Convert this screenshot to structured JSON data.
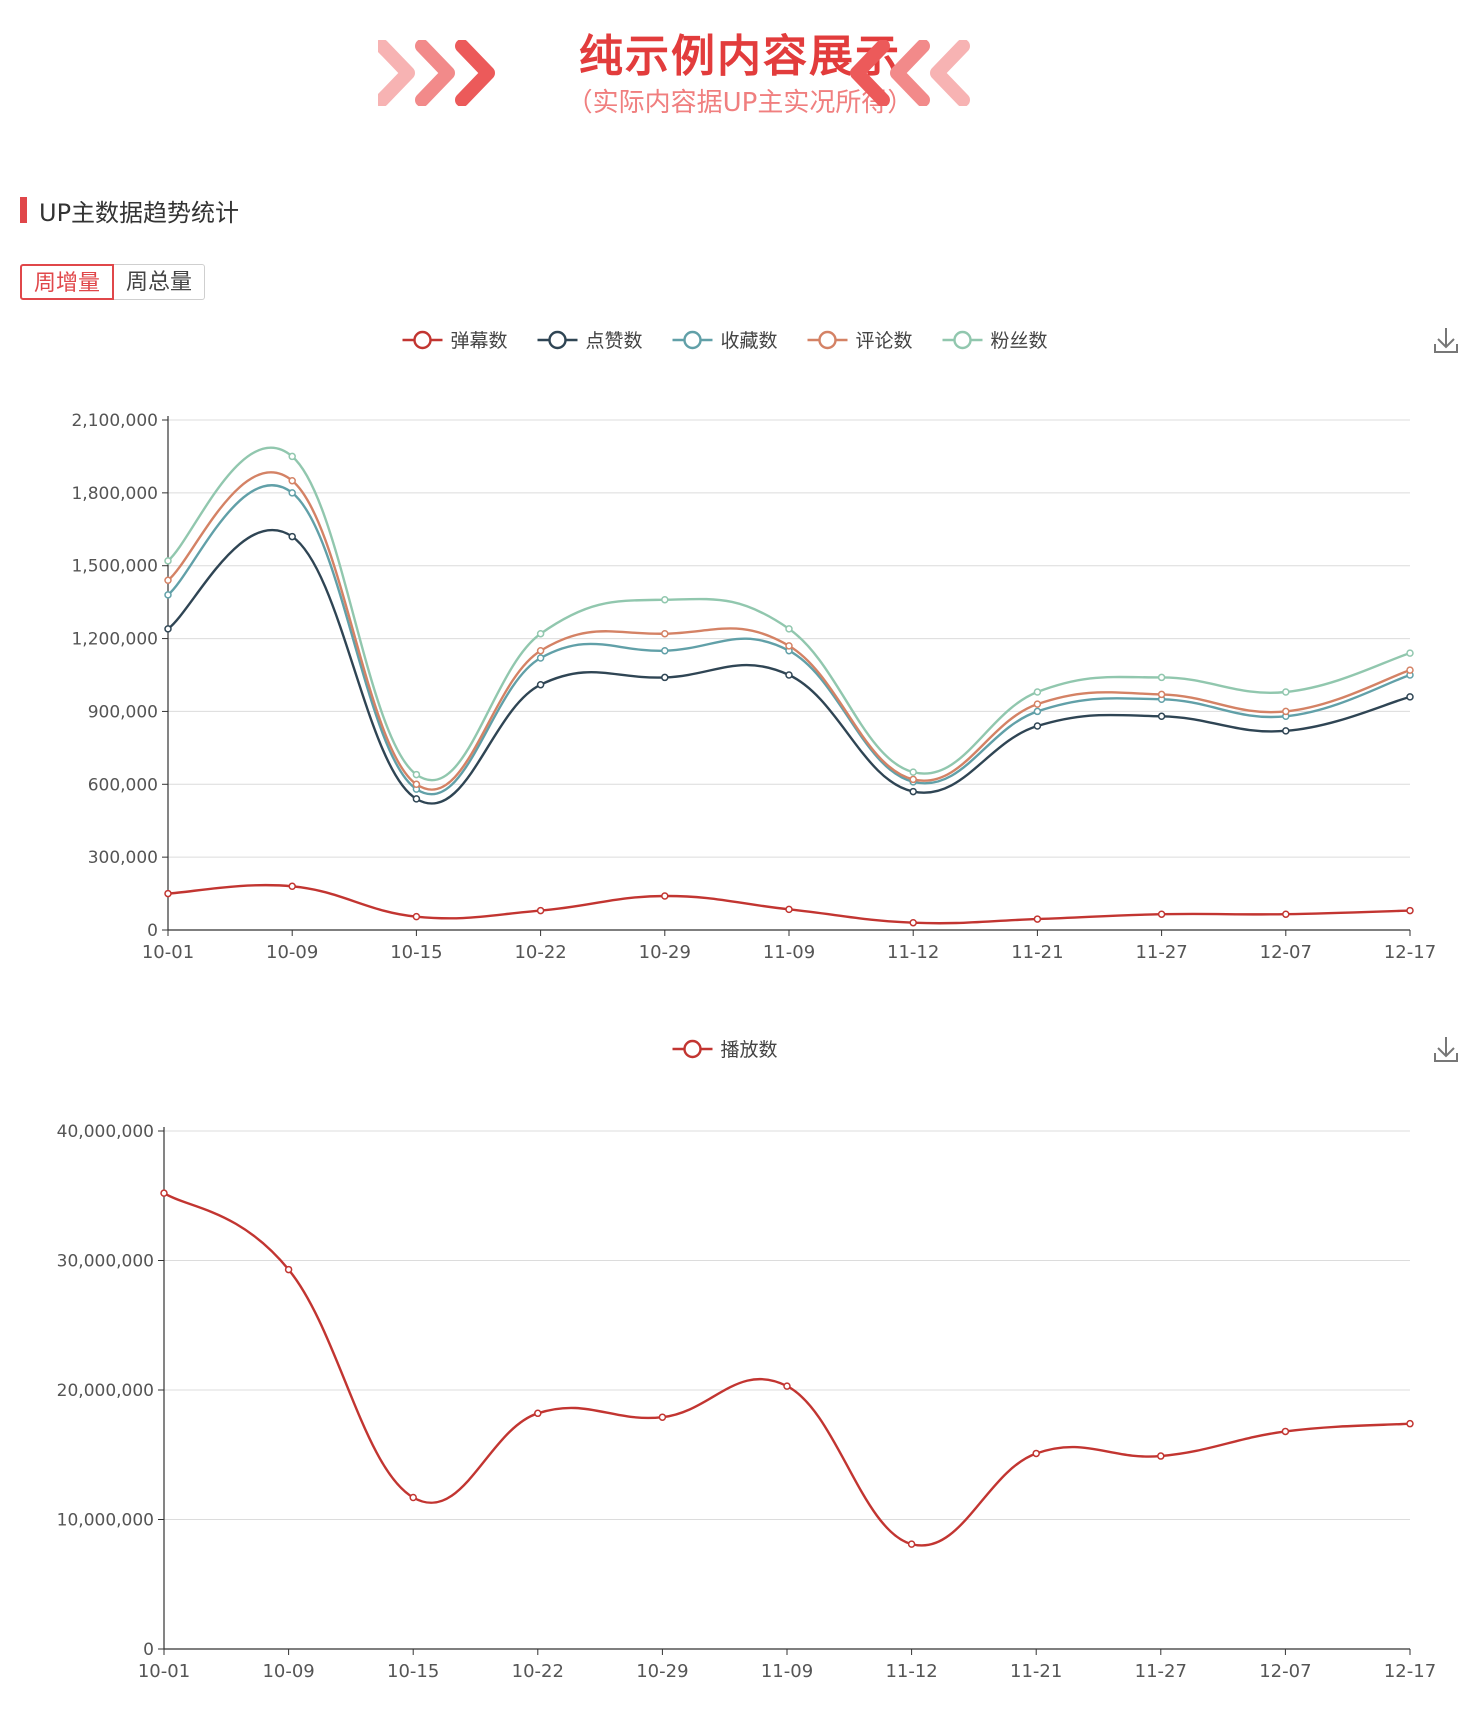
{
  "banner": {
    "title": "纯示例内容展示",
    "subtitle": "（实际内容据UP主实况所得）",
    "chevron_colors": [
      "#f7b3b3",
      "#f28a8a",
      "#ec5a5a"
    ]
  },
  "section": {
    "title": "UP主数据趋势统计"
  },
  "tabs": [
    {
      "label": "周增量",
      "active": true
    },
    {
      "label": "周总量",
      "active": false
    }
  ],
  "chart_data": [
    {
      "type": "line",
      "smooth": true,
      "categories": [
        "10-01",
        "10-09",
        "10-15",
        "10-22",
        "10-29",
        "11-09",
        "11-12",
        "11-21",
        "11-27",
        "12-07",
        "12-17"
      ],
      "ylim": [
        0,
        2100000
      ],
      "yticks": [
        "0",
        "300,000",
        "600,000",
        "900,000",
        "1,200,000",
        "1,500,000",
        "1,800,000",
        "2,100,000"
      ],
      "grid": true,
      "legend_position": "top-center",
      "series": [
        {
          "name": "弹幕数",
          "color": "#c23531",
          "values": [
            150000,
            180000,
            55000,
            80000,
            140000,
            85000,
            30000,
            45000,
            65000,
            65000,
            80000
          ]
        },
        {
          "name": "点赞数",
          "color": "#2f4554",
          "values": [
            1240000,
            1620000,
            540000,
            1010000,
            1040000,
            1050000,
            570000,
            840000,
            880000,
            820000,
            960000
          ]
        },
        {
          "name": "收藏数",
          "color": "#61a0a8",
          "values": [
            1380000,
            1800000,
            580000,
            1120000,
            1150000,
            1150000,
            610000,
            900000,
            950000,
            880000,
            1050000
          ]
        },
        {
          "name": "评论数",
          "color": "#d48265",
          "values": [
            1440000,
            1850000,
            600000,
            1150000,
            1220000,
            1170000,
            620000,
            930000,
            970000,
            900000,
            1070000
          ]
        },
        {
          "name": "粉丝数",
          "color": "#91c7ae",
          "values": [
            1520000,
            1950000,
            640000,
            1220000,
            1360000,
            1240000,
            650000,
            980000,
            1040000,
            980000,
            1140000
          ]
        }
      ]
    },
    {
      "type": "line",
      "smooth": true,
      "categories": [
        "10-01",
        "10-09",
        "10-15",
        "10-22",
        "10-29",
        "11-09",
        "11-12",
        "11-21",
        "11-27",
        "12-07",
        "12-17"
      ],
      "ylim": [
        0,
        40000000
      ],
      "yticks": [
        "0",
        "10,000,000",
        "20,000,000",
        "30,000,000",
        "40,000,000"
      ],
      "grid": true,
      "legend_position": "top-center",
      "series": [
        {
          "name": "播放数",
          "color": "#c23531",
          "values": [
            35200000,
            29300000,
            11700000,
            18200000,
            17900000,
            20300000,
            8100000,
            15100000,
            14900000,
            16800000,
            17400000
          ]
        }
      ]
    }
  ]
}
